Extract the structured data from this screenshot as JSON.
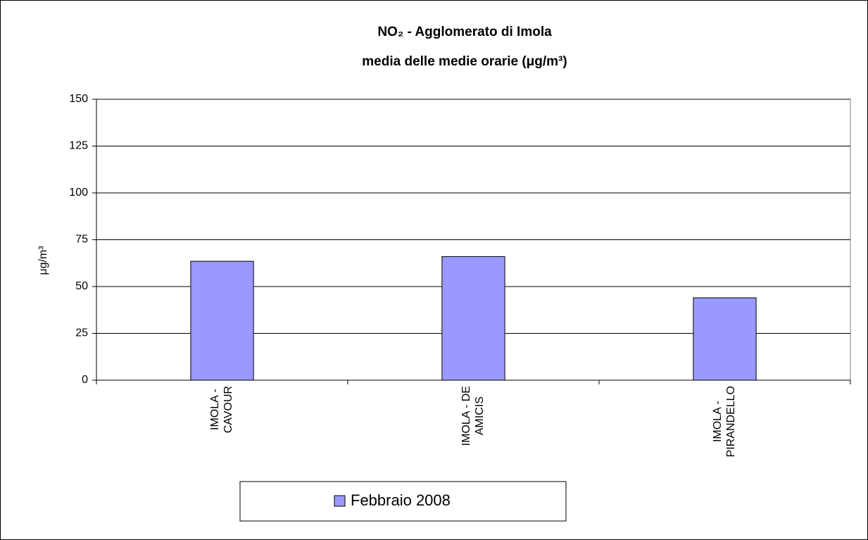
{
  "chart_data": {
    "type": "bar",
    "title": [
      "NO₂ - Agglomerato di Imola",
      "media delle medie orarie (μg/m³)"
    ],
    "y_label": "μg/m³",
    "categories": [
      [
        "IMOLA -",
        "CAVOUR"
      ],
      [
        "IMOLA - DE",
        "AMICIS"
      ],
      [
        "IMOLA -",
        "PIRANDELLO"
      ]
    ],
    "series": [
      {
        "name": "Febbraio 2008",
        "color": "#9999ff",
        "values": [
          63.5,
          66,
          44
        ]
      }
    ],
    "ylim": [
      0,
      150
    ],
    "yticks": [
      0,
      25,
      50,
      75,
      100,
      125,
      150
    ],
    "grid": true,
    "legend": "bottom"
  }
}
